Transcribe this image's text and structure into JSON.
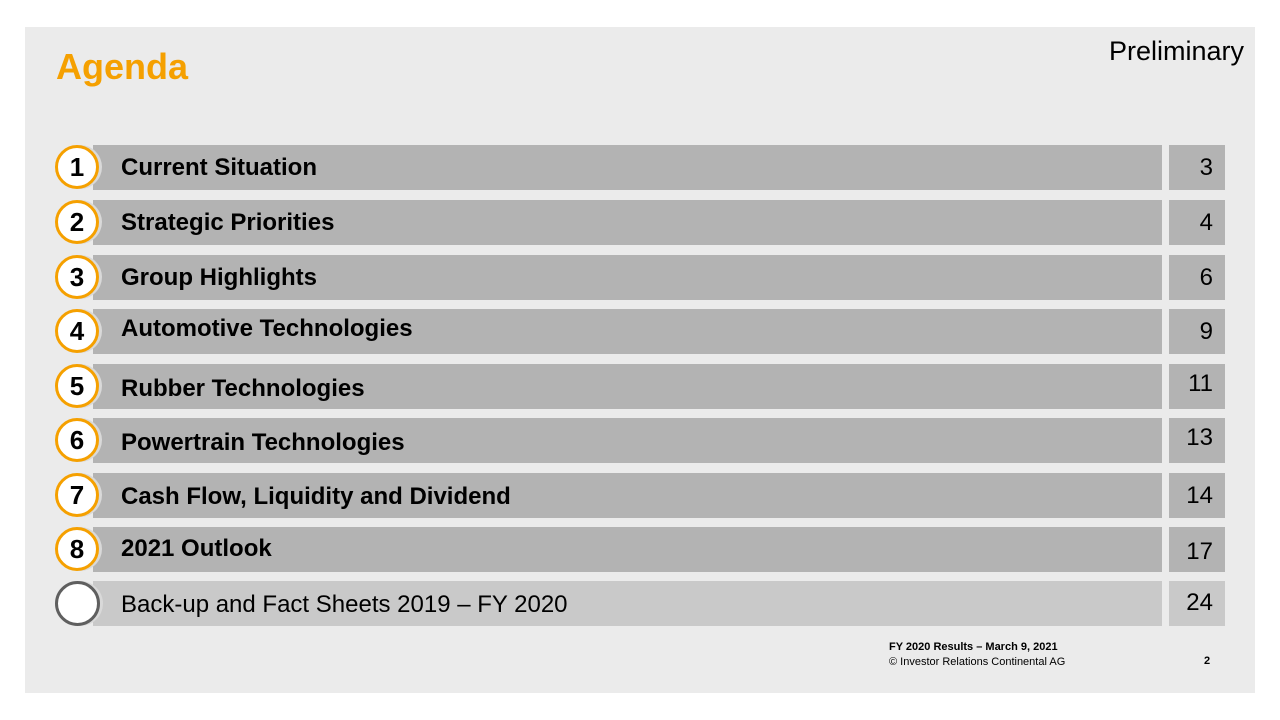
{
  "header": {
    "title": "Agenda",
    "status": "Preliminary"
  },
  "colors": {
    "accent": "#f5a000",
    "bar": "#b3b3b3",
    "bar_light": "#c9c9c9",
    "background": "#ebebeb"
  },
  "agenda": [
    {
      "number": "1",
      "label": "Current Situation",
      "page": "3"
    },
    {
      "number": "2",
      "label": "Strategic Priorities",
      "page": "4"
    },
    {
      "number": "3",
      "label": "Group Highlights",
      "page": "6"
    },
    {
      "number": "4",
      "label": "Automotive Technologies",
      "page": "9"
    },
    {
      "number": "5",
      "label": "Rubber Technologies",
      "page": "11"
    },
    {
      "number": "6",
      "label": "Powertrain Technologies",
      "page": "13"
    },
    {
      "number": "7",
      "label": "Cash Flow, Liquidity and Dividend",
      "page": "14"
    },
    {
      "number": "8",
      "label": "2021 Outlook",
      "page": "17"
    },
    {
      "number": "",
      "label": "Back-up and Fact Sheets 2019 – FY 2020",
      "page": "24"
    }
  ],
  "footer": {
    "line1": "FY 2020 Results – March 9, 2021",
    "line2": "© Investor Relations Continental AG",
    "slide_number": "2"
  }
}
